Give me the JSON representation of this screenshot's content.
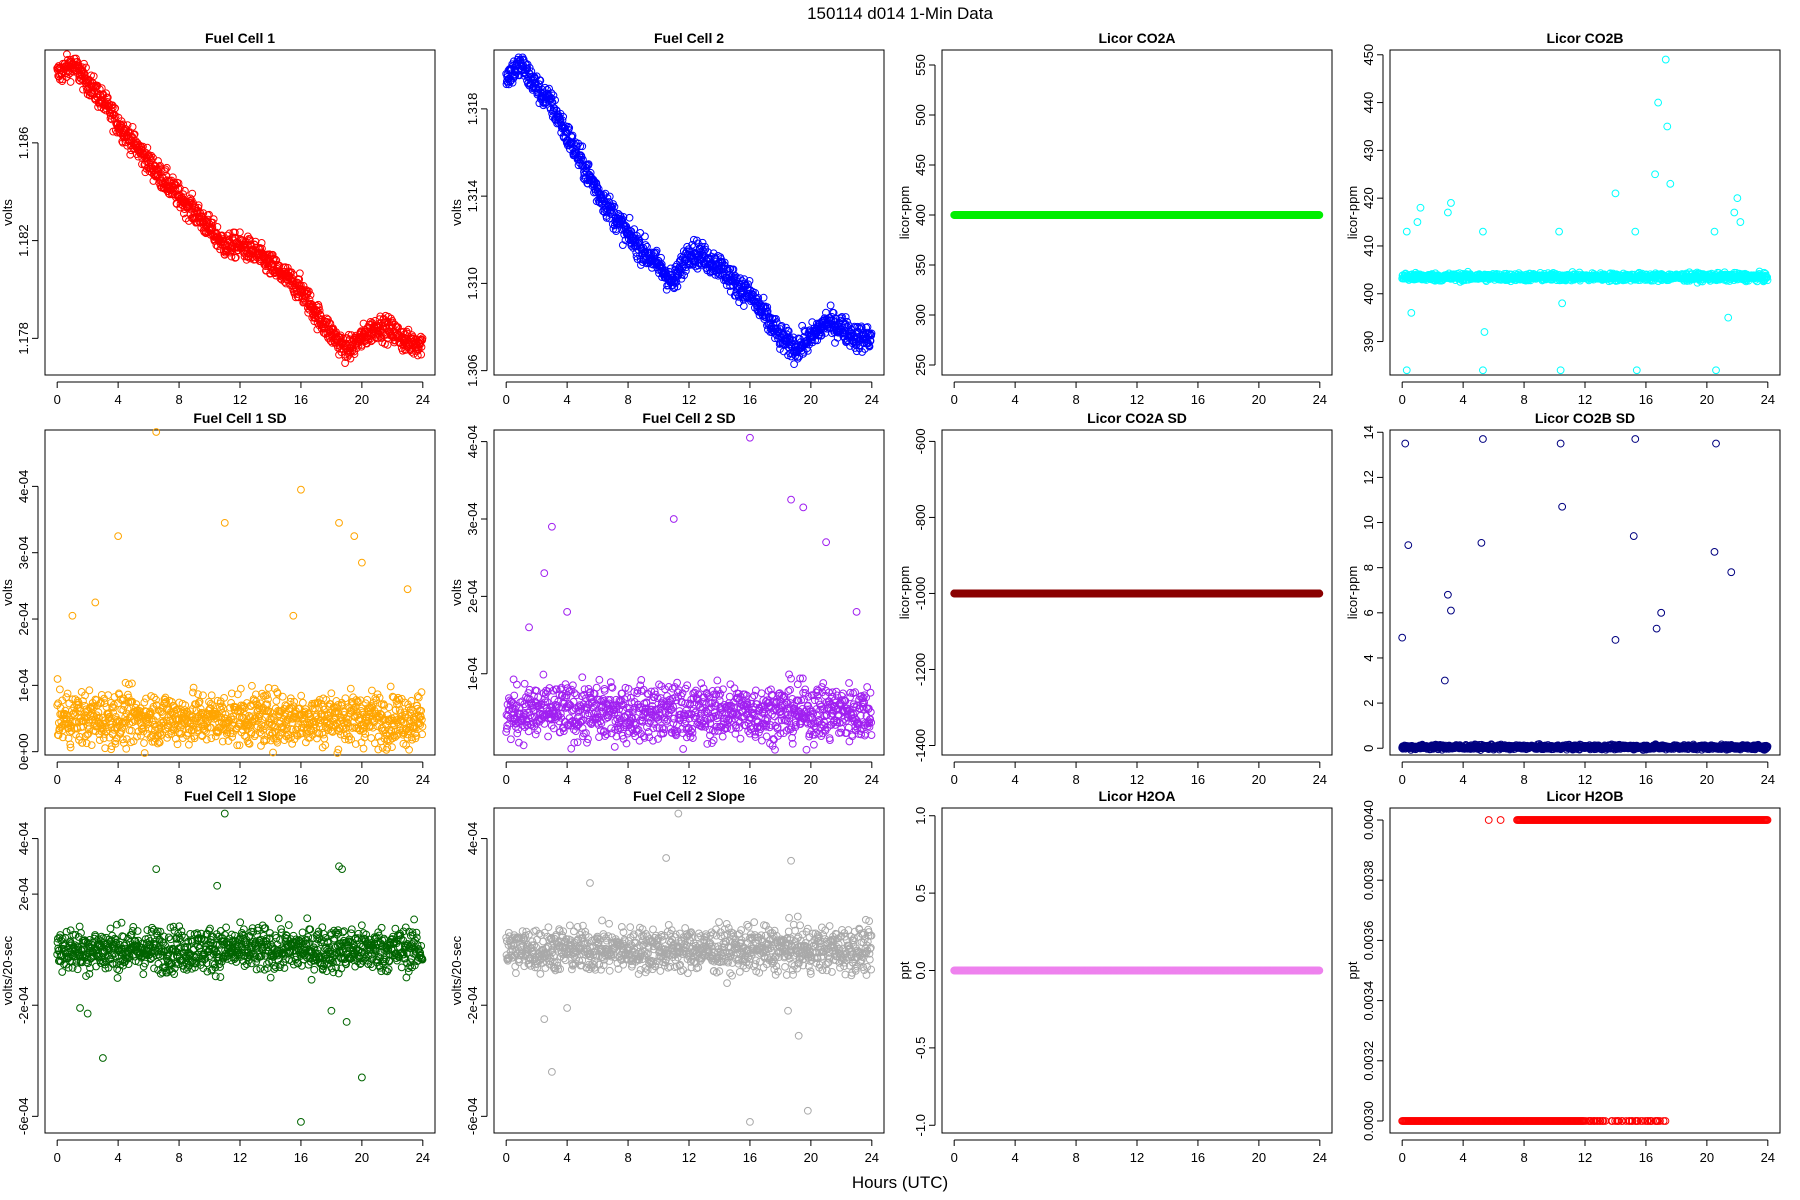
{
  "figure": {
    "main_title": "150114   d014   1-Min Data",
    "xlabel": "Hours (UTC)"
  },
  "chart_data": [
    {
      "type": "scatter",
      "title": "Fuel Cell 1",
      "ylabel": "volts",
      "color": "#ff0000",
      "xlim": [
        -0.8,
        24.8
      ],
      "ylim": [
        1.1765,
        1.1898
      ],
      "yticks": [
        "1.178",
        "1.182",
        "1.186"
      ],
      "ytickvals": [
        1.178,
        1.182,
        1.186
      ],
      "xticks": [
        "0",
        "4",
        "8",
        "12",
        "16",
        "20",
        "24"
      ],
      "x": [
        0,
        1,
        2,
        3,
        4,
        5,
        6,
        7,
        8,
        9,
        10,
        11,
        12,
        13,
        14,
        15,
        16,
        17,
        18,
        19,
        20,
        21,
        22,
        23,
        24
      ],
      "y": [
        1.1888,
        1.1892,
        1.1885,
        1.1877,
        1.1868,
        1.186,
        1.1852,
        1.1845,
        1.1838,
        1.1832,
        1.1825,
        1.1818,
        1.1818,
        1.1815,
        1.181,
        1.1805,
        1.18,
        1.179,
        1.1782,
        1.1775,
        1.178,
        1.1785,
        1.1783,
        1.1778,
        1.1778
      ],
      "noise": 0.00025
    },
    {
      "type": "scatter",
      "title": "Fuel Cell 2",
      "ylabel": "volts",
      "color": "#0000ff",
      "xlim": [
        -0.8,
        24.8
      ],
      "ylim": [
        1.3058,
        1.3207
      ],
      "yticks": [
        "1.306",
        "1.310",
        "1.314",
        "1.318"
      ],
      "ytickvals": [
        1.306,
        1.31,
        1.314,
        1.318
      ],
      "xticks": [
        "0",
        "4",
        "8",
        "12",
        "16",
        "20",
        "24"
      ],
      "x": [
        0,
        1,
        2,
        3,
        4,
        5,
        6,
        7,
        8,
        9,
        10,
        11,
        12,
        13,
        14,
        15,
        16,
        17,
        18,
        19,
        20,
        21,
        22,
        23,
        24
      ],
      "y": [
        1.3195,
        1.32,
        1.319,
        1.3182,
        1.3168,
        1.3155,
        1.3142,
        1.3132,
        1.3122,
        1.3115,
        1.3108,
        1.31,
        1.3115,
        1.3112,
        1.3108,
        1.31,
        1.3095,
        1.3085,
        1.3075,
        1.307,
        1.3075,
        1.3082,
        1.308,
        1.3075,
        1.3075
      ],
      "noise": 0.0003
    },
    {
      "type": "scatter",
      "title": "Licor CO2A",
      "ylabel": "licor-ppm",
      "color": "#00ee00",
      "xlim": [
        -0.8,
        24.8
      ],
      "ylim": [
        240,
        565
      ],
      "yticks": [
        "250",
        "300",
        "350",
        "400",
        "450",
        "500",
        "550"
      ],
      "ytickvals": [
        250,
        300,
        350,
        400,
        450,
        500,
        550
      ],
      "xticks": [
        "0",
        "4",
        "8",
        "12",
        "16",
        "20",
        "24"
      ],
      "x": [
        0,
        24
      ],
      "y": [
        400,
        400
      ],
      "noise": 0
    },
    {
      "type": "scatter",
      "title": "Licor CO2B",
      "ylabel": "licor-ppm",
      "color": "#00ffff",
      "xlim": [
        -0.8,
        24.8
      ],
      "ylim": [
        383,
        451
      ],
      "yticks": [
        "390",
        "400",
        "410",
        "420",
        "430",
        "440",
        "450"
      ],
      "ytickvals": [
        390,
        400,
        410,
        420,
        430,
        440,
        450
      ],
      "xticks": [
        "0",
        "4",
        "8",
        "12",
        "16",
        "20",
        "24"
      ],
      "x": [
        0,
        24
      ],
      "y": [
        403.5,
        403.5
      ],
      "noise": 0.4,
      "outliers_x": [
        0.3,
        0.3,
        0.6,
        1.0,
        1.2,
        3.0,
        3.2,
        5.3,
        5.3,
        5.4,
        10.3,
        10.4,
        10.5,
        14.0,
        15.3,
        15.4,
        16.6,
        16.8,
        17.3,
        17.4,
        17.6,
        20.5,
        20.6,
        21.4,
        21.8,
        22.0,
        22.2
      ],
      "outliers_y": [
        413,
        384,
        396,
        415,
        418,
        417,
        419,
        413,
        384,
        392,
        413,
        384,
        398,
        421,
        413,
        384,
        425,
        440,
        449,
        435,
        423,
        413,
        384,
        395,
        417,
        420,
        415
      ]
    },
    {
      "type": "scatter",
      "title": "Fuel Cell 1 SD",
      "ylabel": "volts",
      "color": "#ffa500",
      "xlim": [
        -0.8,
        24.8
      ],
      "ylim": [
        -5e-06,
        0.000485
      ],
      "yticks": [
        "0e+00",
        "1e-04",
        "2e-04",
        "3e-04",
        "4e-04"
      ],
      "ytickvals": [
        0,
        0.0001,
        0.0002,
        0.0003,
        0.0004
      ],
      "xticks": [
        "0",
        "4",
        "8",
        "12",
        "16",
        "20",
        "24"
      ],
      "x": [
        0,
        24
      ],
      "y": [
        5e-05,
        5e-05
      ],
      "noise": 2e-05,
      "outliers_x": [
        6.5,
        16.0,
        11.0,
        18.5,
        4.0,
        19.5,
        23.0,
        2.5,
        1.0,
        20.0,
        15.5
      ],
      "outliers_y": [
        0.000485,
        0.000395,
        0.000345,
        0.000345,
        0.000325,
        0.000325,
        0.000245,
        0.000225,
        0.000205,
        0.000285,
        0.000205
      ]
    },
    {
      "type": "scatter",
      "title": "Fuel Cell 2 SD",
      "ylabel": "volts",
      "color": "#a020f0",
      "xlim": [
        -0.8,
        24.8
      ],
      "ylim": [
        -5e-06,
        0.000415
      ],
      "yticks": [
        "1e-04",
        "2e-04",
        "3e-04",
        "4e-04"
      ],
      "ytickvals": [
        0.0001,
        0.0002,
        0.0003,
        0.0004
      ],
      "xticks": [
        "0",
        "4",
        "8",
        "12",
        "16",
        "20",
        "24"
      ],
      "x": [
        0,
        24
      ],
      "y": [
        5e-05,
        5e-05
      ],
      "noise": 1.8e-05,
      "outliers_x": [
        16.0,
        18.7,
        19.5,
        3.0,
        2.5,
        11.0,
        1.5,
        4.0,
        21.0,
        23.0
      ],
      "outliers_y": [
        0.000405,
        0.000325,
        0.000315,
        0.00029,
        0.00023,
        0.0003,
        0.00016,
        0.00018,
        0.00027,
        0.00018
      ]
    },
    {
      "type": "scatter",
      "title": "Licor CO2A SD",
      "ylabel": "licor-ppm",
      "color": "#8b0000",
      "xlim": [
        -0.8,
        24.8
      ],
      "ylim": [
        -1425,
        -570
      ],
      "yticks": [
        "-1400",
        "-1200",
        "-1000",
        "-800",
        "-600"
      ],
      "ytickvals": [
        -1400,
        -1200,
        -1000,
        -800,
        -600
      ],
      "xticks": [
        "0",
        "4",
        "8",
        "12",
        "16",
        "20",
        "24"
      ],
      "x": [
        0,
        24
      ],
      "y": [
        -1000,
        -1000
      ],
      "noise": 0
    },
    {
      "type": "scatter",
      "title": "Licor CO2B SD",
      "ylabel": "licor-ppm",
      "color": "#000080",
      "xlim": [
        -0.8,
        24.8
      ],
      "ylim": [
        -0.3,
        14.1
      ],
      "yticks": [
        "0",
        "2",
        "4",
        "6",
        "8",
        "10",
        "12",
        "14"
      ],
      "ytickvals": [
        0,
        2,
        4,
        6,
        8,
        10,
        12,
        14
      ],
      "xticks": [
        "0",
        "4",
        "8",
        "12",
        "16",
        "20",
        "24"
      ],
      "x": [
        0,
        24
      ],
      "y": [
        0.05,
        0.05
      ],
      "noise": 0.05,
      "outliers_x": [
        0.0,
        0.2,
        0.4,
        5.3,
        10.4,
        15.3,
        20.6,
        10.5,
        5.2,
        15.2,
        3.0,
        3.2,
        2.8,
        14.0,
        17.0,
        16.7,
        21.6,
        20.5
      ],
      "outliers_y": [
        4.9,
        13.5,
        9.0,
        13.7,
        13.5,
        13.7,
        13.5,
        10.7,
        9.1,
        9.4,
        6.8,
        6.1,
        3.0,
        4.8,
        6.0,
        5.3,
        7.8,
        8.7
      ]
    },
    {
      "type": "scatter",
      "title": "Fuel Cell 1 Slope",
      "ylabel": "volts/20-sec",
      "color": "#006400",
      "xlim": [
        -0.8,
        24.8
      ],
      "ylim": [
        -0.00066,
        0.00051
      ],
      "yticks": [
        "-6e-04",
        "-2e-04",
        "2e-04",
        "4e-04"
      ],
      "ytickvals": [
        -0.0006,
        -0.0002,
        0.0002,
        0.0004
      ],
      "xticks": [
        "0",
        "4",
        "8",
        "12",
        "16",
        "20",
        "24"
      ],
      "x": [
        0,
        24
      ],
      "y": [
        0,
        0
      ],
      "noise": 4e-05,
      "outliers_x": [
        11.0,
        16.0,
        3.0,
        20.0,
        6.5,
        18.5,
        18.7,
        10.5,
        1.5,
        2.0,
        18.0,
        19.0
      ],
      "outliers_y": [
        0.00049,
        -0.00062,
        -0.00039,
        -0.00046,
        0.00029,
        0.0003,
        0.00029,
        0.00023,
        -0.00021,
        -0.00023,
        -0.00022,
        -0.00026
      ]
    },
    {
      "type": "scatter",
      "title": "Fuel Cell 2 Slope",
      "ylabel": "volts/20-sec",
      "color": "#a9a9a9",
      "xlim": [
        -0.8,
        24.8
      ],
      "ylim": [
        -0.00066,
        0.00051
      ],
      "yticks": [
        "-6e-04",
        "-2e-04",
        "4e-04"
      ],
      "ytickvals": [
        -0.0006,
        -0.0002,
        0.0004
      ],
      "xticks": [
        "0",
        "4",
        "8",
        "12",
        "16",
        "20",
        "24"
      ],
      "x": [
        0,
        24
      ],
      "y": [
        0,
        0
      ],
      "noise": 4e-05,
      "outliers_x": [
        11.3,
        16.0,
        3.0,
        19.8,
        2.5,
        10.5,
        18.7,
        19.2,
        5.5,
        4.0,
        18.5
      ],
      "outliers_y": [
        0.00049,
        -0.00062,
        -0.00044,
        -0.00058,
        -0.00025,
        0.00033,
        0.00032,
        -0.00031,
        0.00024,
        -0.00021,
        -0.00022
      ]
    },
    {
      "type": "scatter",
      "title": "Licor H2OA",
      "ylabel": "ppt",
      "color": "#ee82ee",
      "xlim": [
        -0.8,
        24.8
      ],
      "ylim": [
        -1.05,
        1.05
      ],
      "yticks": [
        "-1.0",
        "-0.5",
        "0.0",
        "0.5",
        "1.0"
      ],
      "ytickvals": [
        -1,
        -0.5,
        0,
        0.5,
        1
      ],
      "xticks": [
        "0",
        "4",
        "8",
        "12",
        "16",
        "20",
        "24"
      ],
      "x": [
        0,
        24
      ],
      "y": [
        0,
        0
      ],
      "noise": 0
    },
    {
      "type": "scatter",
      "title": "Licor H2OB",
      "ylabel": "ppt",
      "color": "#ff0000",
      "xlim": [
        -0.8,
        24.8
      ],
      "ylim": [
        0.00296,
        0.00404
      ],
      "yticks": [
        "0.0030",
        "0.0032",
        "0.0034",
        "0.0036",
        "0.0038",
        "0.0040"
      ],
      "ytickvals": [
        0.003,
        0.0032,
        0.0034,
        0.0036,
        0.0038,
        0.004
      ],
      "xticks": [
        "0",
        "4",
        "8",
        "12",
        "16",
        "20",
        "24"
      ],
      "x": [
        0,
        24
      ],
      "y": [
        0.003,
        0.004
      ],
      "noise": 0,
      "low_level": 0.003,
      "low_range": [
        0,
        17.3
      ],
      "high_level": 0.004,
      "high_range": [
        5.5,
        24
      ]
    }
  ]
}
